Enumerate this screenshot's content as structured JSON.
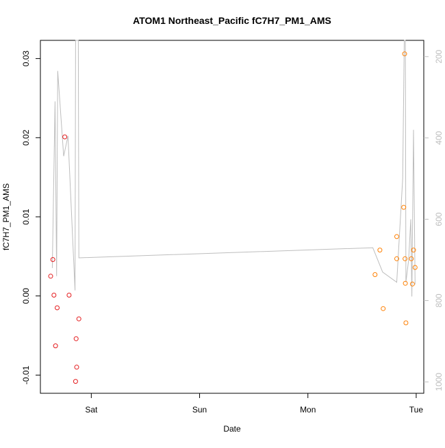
{
  "chart_data": {
    "type": "scatter",
    "title": "ATOM1 Northeast_Pacific fC7H7_PM1_AMS",
    "xlabel": "Date",
    "ylabel": "fC7H7_PM1_AMS",
    "x_ticks": [
      {
        "label": "Sat",
        "value": 0.0
      },
      {
        "label": "Sun",
        "value": 1.0
      },
      {
        "label": "Mon",
        "value": 2.0
      },
      {
        "label": "Tue",
        "value": 3.0
      }
    ],
    "xlim": [
      -0.47,
      3.07
    ],
    "ylim": [
      -0.0123,
      0.0323
    ],
    "y_ticks": [
      {
        "label": "-0.01",
        "value": -0.01
      },
      {
        "label": "0.00",
        "value": 0.0
      },
      {
        "label": "0.01",
        "value": 0.01
      },
      {
        "label": "0.02",
        "value": 0.02
      },
      {
        "label": "0.03",
        "value": 0.03
      }
    ],
    "y2lim": [
      1028,
      160
    ],
    "y2_ticks": [
      {
        "label": "200",
        "value": 200
      },
      {
        "label": "400",
        "value": 400
      },
      {
        "label": "600",
        "value": 600
      },
      {
        "label": "800",
        "value": 800
      },
      {
        "label": "1000",
        "value": 1000
      }
    ],
    "series": [
      {
        "color": "#e41a1c",
        "points": [
          {
            "x": -0.375,
            "y": 0.0025
          },
          {
            "x": -0.355,
            "y": 0.0046
          },
          {
            "x": -0.345,
            "y": 0.0001
          },
          {
            "x": -0.33,
            "y": -0.0063
          },
          {
            "x": -0.315,
            "y": -0.0015
          },
          {
            "x": -0.245,
            "y": 0.0201
          },
          {
            "x": -0.205,
            "y": 0.0001
          },
          {
            "x": -0.145,
            "y": -0.0108
          },
          {
            "x": -0.14,
            "y": -0.0054
          },
          {
            "x": -0.135,
            "y": -0.009
          },
          {
            "x": -0.115,
            "y": -0.0029
          }
        ]
      },
      {
        "color": "#ff7f00",
        "points": [
          {
            "x": 2.62,
            "y": 0.0027
          },
          {
            "x": 2.665,
            "y": 0.0058
          },
          {
            "x": 2.695,
            "y": -0.0016
          },
          {
            "x": 2.82,
            "y": 0.0075
          },
          {
            "x": 2.82,
            "y": 0.0047
          },
          {
            "x": 2.885,
            "y": 0.0112
          },
          {
            "x": 2.893,
            "y": 0.0306
          },
          {
            "x": 2.897,
            "y": 0.0047
          },
          {
            "x": 2.9,
            "y": 0.0016
          },
          {
            "x": 2.905,
            "y": -0.0034
          },
          {
            "x": 2.955,
            "y": 0.0047
          },
          {
            "x": 2.965,
            "y": 0.0015
          },
          {
            "x": 2.975,
            "y": 0.0058
          },
          {
            "x": 2.99,
            "y": 0.0036
          }
        ]
      }
    ],
    "altitude_line": {
      "color": "#bdbdbd",
      "points": [
        {
          "x": -0.36,
          "y2": 720
        },
        {
          "x": -0.335,
          "y2": 310
        },
        {
          "x": -0.32,
          "y2": 740
        },
        {
          "x": -0.31,
          "y2": 235
        },
        {
          "x": -0.255,
          "y2": 445
        },
        {
          "x": -0.215,
          "y2": 395
        },
        {
          "x": -0.15,
          "y2": 775
        },
        {
          "x": -0.145,
          "y2": 160
        },
        {
          "x": -0.12,
          "y2": 160
        },
        {
          "x": -0.115,
          "y2": 695
        },
        {
          "x": 2.6,
          "y2": 670
        },
        {
          "x": 2.69,
          "y2": 730
        },
        {
          "x": 2.82,
          "y2": 755
        },
        {
          "x": 2.875,
          "y2": 500
        },
        {
          "x": 2.89,
          "y2": 160
        },
        {
          "x": 2.9,
          "y2": 160
        },
        {
          "x": 2.905,
          "y2": 755
        },
        {
          "x": 2.93,
          "y2": 700
        },
        {
          "x": 2.95,
          "y2": 600
        },
        {
          "x": 2.96,
          "y2": 790
        },
        {
          "x": 2.975,
          "y2": 380
        },
        {
          "x": 2.99,
          "y2": 760
        }
      ]
    }
  }
}
